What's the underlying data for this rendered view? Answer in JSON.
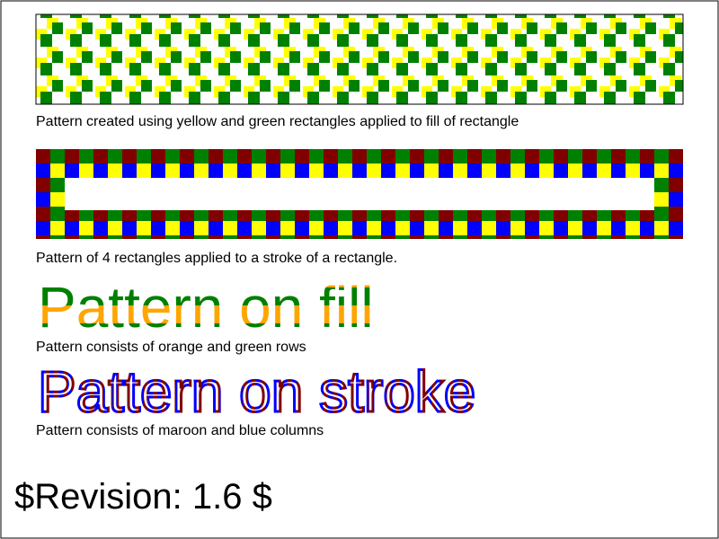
{
  "colors": {
    "yellow": "#ffff00",
    "green": "#008000",
    "blue": "#0000ff",
    "maroon": "#800000",
    "orange": "#ffa500",
    "frame": "#000000"
  },
  "sections": [
    {
      "caption": "Pattern created using yellow and green rectangles applied to fill of rectangle"
    },
    {
      "caption": "Pattern of 4 rectangles applied to a stroke of a rectangle."
    },
    {
      "text": "Pattern on fill",
      "caption": "Pattern consists of orange and green rows"
    },
    {
      "text": "Pattern on stroke",
      "caption": "Pattern consists of maroon and blue columns"
    }
  ],
  "revision": "$Revision: 1.6 $"
}
